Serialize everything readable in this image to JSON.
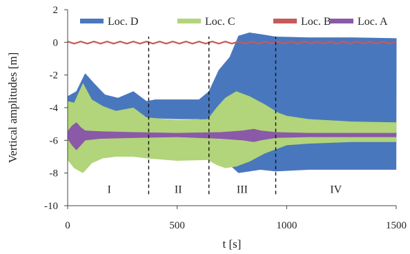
{
  "chart_data": {
    "type": "area",
    "xlabel": "t [s]",
    "ylabel": "Vertical amplitudes [m]",
    "xlim": [
      0,
      1500
    ],
    "ylim": [
      -10,
      2
    ],
    "xticks": [
      0,
      500,
      1000,
      1500
    ],
    "yticks": [
      -10,
      -8,
      -6,
      -4,
      -2,
      0,
      2
    ],
    "legend_position": "top",
    "series": [
      {
        "name": "Loc. D",
        "color": "#4a78bd",
        "upper": [
          [
            0,
            -3.3
          ],
          [
            40,
            -3.0
          ],
          [
            80,
            -1.9
          ],
          [
            120,
            -2.5
          ],
          [
            170,
            -3.2
          ],
          [
            230,
            -3.4
          ],
          [
            300,
            -3.0
          ],
          [
            360,
            -3.6
          ],
          [
            400,
            -3.5
          ],
          [
            500,
            -3.5
          ],
          [
            600,
            -3.5
          ],
          [
            645,
            -3.0
          ],
          [
            690,
            -1.7
          ],
          [
            740,
            -0.9
          ],
          [
            780,
            0.4
          ],
          [
            830,
            0.6
          ],
          [
            880,
            0.5
          ],
          [
            950,
            0.35
          ],
          [
            1100,
            0.3
          ],
          [
            1300,
            0.3
          ],
          [
            1500,
            0.25
          ]
        ],
        "lower": [
          [
            0,
            -4.3
          ],
          [
            40,
            -4.6
          ],
          [
            80,
            -4.2
          ],
          [
            120,
            -4.3
          ],
          [
            170,
            -4.4
          ],
          [
            230,
            -4.7
          ],
          [
            300,
            -4.5
          ],
          [
            360,
            -4.6
          ],
          [
            400,
            -4.65
          ],
          [
            500,
            -4.7
          ],
          [
            600,
            -4.7
          ],
          [
            645,
            -5.0
          ],
          [
            690,
            -6.5
          ],
          [
            740,
            -7.5
          ],
          [
            780,
            -8.0
          ],
          [
            830,
            -7.9
          ],
          [
            880,
            -7.8
          ],
          [
            950,
            -7.9
          ],
          [
            1100,
            -7.8
          ],
          [
            1300,
            -7.8
          ],
          [
            1500,
            -7.8
          ]
        ]
      },
      {
        "name": "Loc. C",
        "color": "#b3d47a",
        "upper": [
          [
            0,
            -3.6
          ],
          [
            30,
            -3.7
          ],
          [
            70,
            -2.5
          ],
          [
            110,
            -3.5
          ],
          [
            160,
            -3.9
          ],
          [
            220,
            -4.2
          ],
          [
            300,
            -4.0
          ],
          [
            360,
            -4.6
          ],
          [
            500,
            -4.75
          ],
          [
            640,
            -4.7
          ],
          [
            680,
            -4.0
          ],
          [
            720,
            -3.4
          ],
          [
            770,
            -3.0
          ],
          [
            830,
            -3.3
          ],
          [
            900,
            -3.8
          ],
          [
            960,
            -4.3
          ],
          [
            1000,
            -4.5
          ],
          [
            1100,
            -4.7
          ],
          [
            1300,
            -4.85
          ],
          [
            1500,
            -4.9
          ]
        ],
        "lower": [
          [
            0,
            -7.2
          ],
          [
            30,
            -7.7
          ],
          [
            70,
            -8.0
          ],
          [
            110,
            -7.4
          ],
          [
            160,
            -7.1
          ],
          [
            220,
            -7.0
          ],
          [
            300,
            -7.0
          ],
          [
            360,
            -7.1
          ],
          [
            500,
            -7.25
          ],
          [
            640,
            -7.2
          ],
          [
            680,
            -7.5
          ],
          [
            720,
            -7.7
          ],
          [
            770,
            -7.6
          ],
          [
            830,
            -7.3
          ],
          [
            900,
            -6.8
          ],
          [
            960,
            -6.5
          ],
          [
            1000,
            -6.3
          ],
          [
            1100,
            -6.2
          ],
          [
            1300,
            -6.1
          ],
          [
            1500,
            -6.1
          ]
        ]
      },
      {
        "name": "Loc. B",
        "color": "#c65a5a",
        "upper": [
          [
            0,
            0.05
          ],
          [
            1500,
            0.05
          ]
        ],
        "lower": [
          [
            0,
            -0.08
          ],
          [
            1500,
            -0.08
          ]
        ]
      },
      {
        "name": "Loc. A",
        "color": "#8a5aa8",
        "upper": [
          [
            0,
            -5.45
          ],
          [
            20,
            -5.1
          ],
          [
            40,
            -4.9
          ],
          [
            60,
            -5.2
          ],
          [
            80,
            -5.4
          ],
          [
            150,
            -5.45
          ],
          [
            300,
            -5.5
          ],
          [
            500,
            -5.55
          ],
          [
            700,
            -5.5
          ],
          [
            800,
            -5.4
          ],
          [
            850,
            -5.3
          ],
          [
            880,
            -5.4
          ],
          [
            950,
            -5.5
          ],
          [
            1100,
            -5.55
          ],
          [
            1500,
            -5.55
          ]
        ],
        "lower": [
          [
            0,
            -5.9
          ],
          [
            20,
            -6.3
          ],
          [
            40,
            -6.6
          ],
          [
            60,
            -6.3
          ],
          [
            80,
            -6.0
          ],
          [
            150,
            -5.9
          ],
          [
            300,
            -5.85
          ],
          [
            500,
            -5.8
          ],
          [
            700,
            -5.9
          ],
          [
            800,
            -6.0
          ],
          [
            850,
            -6.1
          ],
          [
            880,
            -6.0
          ],
          [
            950,
            -5.85
          ],
          [
            1100,
            -5.8
          ],
          [
            1500,
            -5.8
          ]
        ]
      }
    ],
    "dividers": [
      370,
      645,
      950
    ],
    "regions": [
      {
        "label": "I",
        "x": 190
      },
      {
        "label": "II",
        "x": 505
      },
      {
        "label": "III",
        "x": 797
      },
      {
        "label": "IV",
        "x": 1225
      }
    ],
    "region_label_y": -9.0
  }
}
